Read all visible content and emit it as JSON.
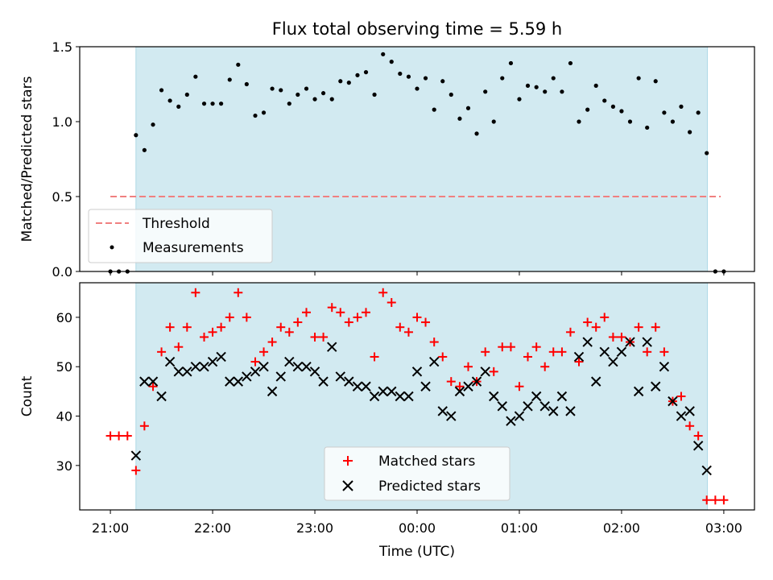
{
  "chart_data": {
    "title": "Flux total observing time = 5.59 h",
    "xlabel": "Time (UTC)",
    "x_tick_labels": [
      "21:00",
      "22:00",
      "23:00",
      "00:00",
      "01:00",
      "02:00",
      "03:00"
    ],
    "x_tick_hours": [
      0,
      1,
      2,
      3,
      4,
      5,
      6
    ],
    "x_origin_label": "21:00",
    "xlim_hours": [
      -0.3,
      6.3
    ],
    "shaded_span_hours": [
      0.25,
      5.84
    ],
    "shaded_color": "#add8e6",
    "panels": [
      {
        "type": "scatter",
        "ylabel": "Matched/Predicted stars",
        "ylim": [
          0,
          1.5
        ],
        "yticks": [
          0.0,
          0.5,
          1.0,
          1.5
        ],
        "ytick_labels": [
          "0.0",
          "0.5",
          "1.0",
          "1.5"
        ],
        "legend_position": "lower-left",
        "threshold": {
          "name": "Threshold",
          "value": 0.5,
          "x_range_hours": [
            0.0,
            5.97
          ],
          "color": "#f08080"
        },
        "series": [
          {
            "name": "Measurements",
            "marker": "dot",
            "color": "#000000",
            "x": [
              0.0,
              0.083,
              0.167,
              0.25,
              0.333,
              0.417,
              0.5,
              0.583,
              0.667,
              0.75,
              0.833,
              0.917,
              1.0,
              1.083,
              1.167,
              1.25,
              1.333,
              1.417,
              1.5,
              1.583,
              1.667,
              1.75,
              1.833,
              1.917,
              2.0,
              2.083,
              2.167,
              2.25,
              2.333,
              2.417,
              2.5,
              2.583,
              2.667,
              2.75,
              2.833,
              2.917,
              3.0,
              3.083,
              3.167,
              3.25,
              3.333,
              3.417,
              3.5,
              3.583,
              3.667,
              3.75,
              3.833,
              3.917,
              4.0,
              4.083,
              4.167,
              4.25,
              4.333,
              4.417,
              4.5,
              4.583,
              4.667,
              4.75,
              4.833,
              4.917,
              5.0,
              5.083,
              5.167,
              5.25,
              5.333,
              5.417,
              5.5,
              5.583,
              5.667,
              5.75,
              5.833,
              5.917,
              6.0
            ],
            "y": [
              0.0,
              0.0,
              0.0,
              0.91,
              0.81,
              0.98,
              1.21,
              1.14,
              1.1,
              1.18,
              1.3,
              1.12,
              1.12,
              1.12,
              1.28,
              1.38,
              1.25,
              1.04,
              1.06,
              1.22,
              1.21,
              1.12,
              1.18,
              1.22,
              1.15,
              1.19,
              1.15,
              1.27,
              1.26,
              1.31,
              1.33,
              1.18,
              1.45,
              1.4,
              1.32,
              1.3,
              1.22,
              1.29,
              1.08,
              1.27,
              1.18,
              1.02,
              1.09,
              0.92,
              1.2,
              1.0,
              1.29,
              1.39,
              1.15,
              1.24,
              1.23,
              1.2,
              1.29,
              1.2,
              1.39,
              1.0,
              1.08,
              1.24,
              1.14,
              1.1,
              1.07,
              1.0,
              1.29,
              0.96,
              1.27,
              1.06,
              1.0,
              1.1,
              0.93,
              1.06,
              0.79,
              0.0,
              0.0
            ]
          }
        ]
      },
      {
        "type": "scatter",
        "ylabel": "Count",
        "ylim": [
          21,
          67
        ],
        "yticks": [
          30,
          40,
          50,
          60
        ],
        "ytick_labels": [
          "30",
          "40",
          "50",
          "60"
        ],
        "legend_position": "lower-center",
        "series": [
          {
            "name": "Matched stars",
            "marker": "plus",
            "color": "#ff0000",
            "x": [
              0.0,
              0.083,
              0.167,
              0.25,
              0.333,
              0.417,
              0.5,
              0.583,
              0.667,
              0.75,
              0.833,
              0.917,
              1.0,
              1.083,
              1.167,
              1.25,
              1.333,
              1.417,
              1.5,
              1.583,
              1.667,
              1.75,
              1.833,
              1.917,
              2.0,
              2.083,
              2.167,
              2.25,
              2.333,
              2.417,
              2.5,
              2.583,
              2.667,
              2.75,
              2.833,
              2.917,
              3.0,
              3.083,
              3.167,
              3.25,
              3.333,
              3.417,
              3.5,
              3.583,
              3.667,
              3.75,
              3.833,
              3.917,
              4.0,
              4.083,
              4.167,
              4.25,
              4.333,
              4.417,
              4.5,
              4.583,
              4.667,
              4.75,
              4.833,
              4.917,
              5.0,
              5.083,
              5.167,
              5.25,
              5.333,
              5.417,
              5.5,
              5.583,
              5.667,
              5.75,
              5.833,
              5.917,
              6.0
            ],
            "y": [
              36,
              36,
              36,
              29,
              38,
              46,
              53,
              58,
              54,
              58,
              65,
              56,
              57,
              58,
              60,
              65,
              60,
              51,
              53,
              55,
              58,
              57,
              59,
              61,
              56,
              56,
              62,
              61,
              59,
              60,
              61,
              52,
              65,
              63,
              58,
              57,
              60,
              59,
              55,
              52,
              47,
              46,
              50,
              47,
              53,
              49,
              54,
              54,
              46,
              52,
              54,
              50,
              53,
              53,
              57,
              51,
              59,
              58,
              60,
              56,
              56,
              55,
              58,
              53,
              58,
              53,
              43,
              44,
              38,
              36,
              23,
              23,
              23
            ]
          },
          {
            "name": "Predicted stars",
            "marker": "x",
            "color": "#000000",
            "x": [
              0.25,
              0.333,
              0.417,
              0.5,
              0.583,
              0.667,
              0.75,
              0.833,
              0.917,
              1.0,
              1.083,
              1.167,
              1.25,
              1.333,
              1.417,
              1.5,
              1.583,
              1.667,
              1.75,
              1.833,
              1.917,
              2.0,
              2.083,
              2.167,
              2.25,
              2.333,
              2.417,
              2.5,
              2.583,
              2.667,
              2.75,
              2.833,
              2.917,
              3.0,
              3.083,
              3.167,
              3.25,
              3.333,
              3.417,
              3.5,
              3.583,
              3.667,
              3.75,
              3.833,
              3.917,
              4.0,
              4.083,
              4.167,
              4.25,
              4.333,
              4.417,
              4.5,
              4.583,
              4.667,
              4.75,
              4.833,
              4.917,
              5.0,
              5.083,
              5.167,
              5.25,
              5.333,
              5.417,
              5.5,
              5.583,
              5.667,
              5.75,
              5.833
            ],
            "y": [
              32,
              47,
              47,
              44,
              51,
              49,
              49,
              50,
              50,
              51,
              52,
              47,
              47,
              48,
              49,
              50,
              45,
              48,
              51,
              50,
              50,
              49,
              47,
              54,
              48,
              47,
              46,
              46,
              44,
              45,
              45,
              44,
              44,
              49,
              46,
              51,
              41,
              40,
              45,
              46,
              47,
              49,
              44,
              42,
              39,
              40,
              42,
              44,
              42,
              41,
              44,
              41,
              52,
              55,
              47,
              53,
              51,
              53,
              55,
              45,
              55,
              46,
              50,
              43,
              40,
              41,
              34,
              29
            ]
          }
        ]
      }
    ]
  }
}
